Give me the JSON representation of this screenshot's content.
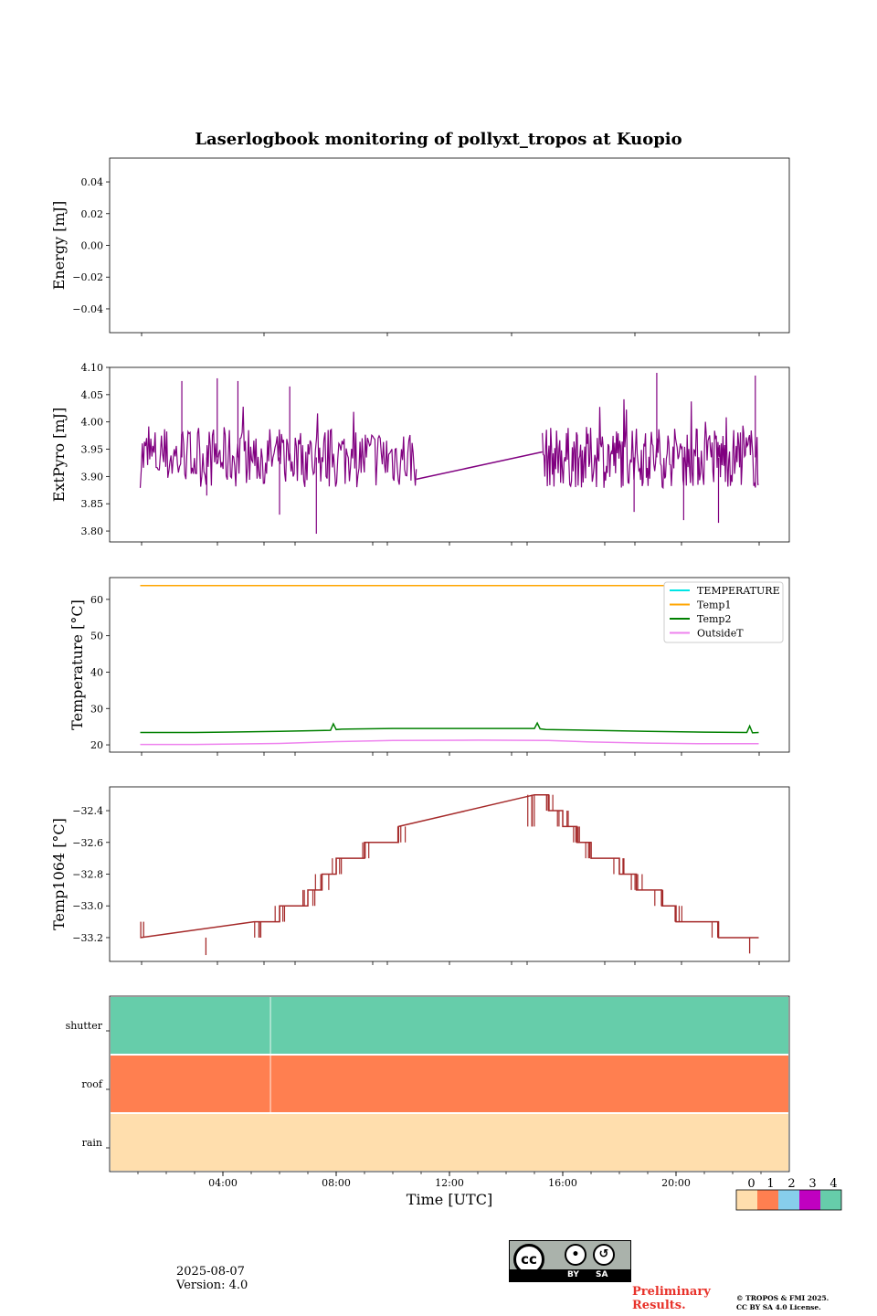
{
  "title": "Laserlogbook monitoring of pollyxt_tropos at Kuopio",
  "footer": {
    "date": "2025-08-07",
    "version": "Version: 4.0",
    "preliminary_line1": "Preliminary",
    "preliminary_line2": "Results.",
    "copyright_line1": "© TROPOS & FMI 2025.",
    "copyright_line2": "CC BY SA 4.0 License.",
    "cc_by": "BY",
    "cc_sa": "SA"
  },
  "colors": {
    "extpyro": "#800080",
    "temperature": "#00e5e5",
    "temp1": "#ffa500",
    "temp2": "#008000",
    "outsideT": "#ee82ee",
    "temp1064": "#a52a2a",
    "status": [
      "#ffdead",
      "#ff7f50",
      "#87ceeb",
      "#c000c0",
      "#66cdaa"
    ]
  },
  "chart_data": [
    {
      "type": "line",
      "name": "energy",
      "ylabel": "Energy [mJ]",
      "ylim": [
        -0.055,
        0.055
      ],
      "yticks": [
        0.04,
        0.02,
        0.0,
        -0.02,
        -0.04
      ],
      "ytick_labels": [
        "0.04",
        "0.02",
        "0.00",
        "−0.02",
        "−0.04"
      ],
      "series": []
    },
    {
      "type": "line",
      "name": "extpyro",
      "ylabel": "ExtPyro [mJ]",
      "ylim": [
        3.78,
        4.1
      ],
      "yticks": [
        4.1,
        4.05,
        4.0,
        3.95,
        3.9,
        3.85,
        3.8
      ],
      "ytick_labels": [
        "4.10",
        "4.05",
        "4.00",
        "3.95",
        "3.90",
        "3.85",
        "3.80"
      ],
      "series": [
        {
          "segments": [
            [
              1.08,
              10.83
            ],
            [
              15.28,
              22.92
            ]
          ],
          "bridge": [
            [
              10.83,
              3.895
            ],
            [
              15.28,
              3.945
            ]
          ],
          "mean": 3.935,
          "spread": 0.035,
          "spikes_high": [
            [
              2.55,
              4.075
            ],
            [
              3.8,
              4.08
            ],
            [
              4.53,
              4.075
            ],
            [
              6.36,
              4.065
            ],
            [
              19.32,
              4.09
            ],
            [
              22.8,
              4.085
            ]
          ],
          "spikes_low": [
            [
              3.43,
              3.865
            ],
            [
              6.0,
              3.83
            ],
            [
              7.3,
              3.795
            ],
            [
              18.52,
              3.835
            ],
            [
              20.27,
              3.82
            ],
            [
              21.5,
              3.815
            ]
          ]
        }
      ]
    },
    {
      "type": "line",
      "name": "temperature",
      "ylabel": "Temperature [°C]",
      "ylim": [
        18,
        66
      ],
      "yticks": [
        60,
        50,
        40,
        30,
        20
      ],
      "ytick_labels": [
        "60",
        "50",
        "40",
        "30",
        "20"
      ],
      "legend": "top-right",
      "series": [
        {
          "name": "TEMPERATURE",
          "x": [],
          "y": []
        },
        {
          "name": "Temp1",
          "x": [
            1.08,
            22.92
          ],
          "y": [
            63.8,
            63.8
          ]
        },
        {
          "name": "Temp2",
          "x": [
            1.08,
            3.0,
            6.0,
            7.8,
            7.9,
            8.0,
            8.2,
            10.0,
            12.0,
            15.0,
            15.1,
            15.2,
            15.4,
            17.0,
            19.0,
            21.0,
            22.5,
            22.6,
            22.7,
            22.92
          ],
          "y": [
            23.4,
            23.4,
            23.7,
            24.0,
            25.8,
            24.2,
            24.3,
            24.5,
            24.5,
            24.5,
            26.0,
            24.4,
            24.2,
            24.0,
            23.7,
            23.5,
            23.4,
            25.2,
            23.3,
            23.4
          ]
        },
        {
          "name": "OutsideT",
          "x": [
            1.08,
            3.0,
            6.0,
            8.0,
            10.0,
            13.0,
            15.5,
            17.0,
            19.0,
            21.0,
            22.92
          ],
          "y": [
            20.1,
            20.1,
            20.4,
            20.9,
            21.2,
            21.3,
            21.2,
            20.8,
            20.5,
            20.3,
            20.3
          ]
        }
      ]
    },
    {
      "type": "line",
      "name": "temp1064",
      "ylabel": "Temp1064 [°C]",
      "ylim": [
        -33.35,
        -32.25
      ],
      "yticks": [
        -32.4,
        -32.6,
        -32.8,
        -33.0,
        -33.2
      ],
      "ytick_labels": [
        "−32.4",
        "−32.6",
        "−32.8",
        "−33.0",
        "−33.2"
      ],
      "series": [
        {
          "steps": [
            [
              1.08,
              -33.2
            ],
            [
              5.1,
              -33.1
            ],
            [
              6.0,
              -33.0
            ],
            [
              7.0,
              -32.9
            ],
            [
              7.5,
              -32.8
            ],
            [
              8.0,
              -32.7
            ],
            [
              9.0,
              -32.6
            ],
            [
              10.2,
              -32.5
            ],
            [
              15.0,
              -32.3
            ],
            [
              15.5,
              -32.4
            ],
            [
              16.0,
              -32.5
            ],
            [
              16.5,
              -32.6
            ],
            [
              17.0,
              -32.7
            ],
            [
              18.0,
              -32.8
            ],
            [
              18.6,
              -32.9
            ],
            [
              19.5,
              -33.0
            ],
            [
              20.0,
              -33.1
            ],
            [
              21.5,
              -33.2
            ],
            [
              22.92,
              -33.2
            ]
          ],
          "dips": [
            [
              3.4,
              -33.31
            ],
            [
              22.6,
              -33.3
            ]
          ]
        }
      ]
    },
    {
      "type": "heatmap",
      "name": "status",
      "rows": [
        "shutter",
        "roof",
        "rain"
      ],
      "row_values": [
        4,
        1,
        0
      ],
      "break_at": 5.68,
      "xlabel": "Time [UTC]",
      "xlim": [
        0,
        24
      ],
      "xtick_labels": [
        "04:00",
        "08:00",
        "12:00",
        "16:00",
        "20:00"
      ],
      "xticks": [
        4,
        8,
        12,
        16,
        20
      ],
      "colorbar": {
        "values": [
          0,
          1,
          2,
          3,
          4
        ],
        "labels": [
          "0",
          "1",
          "2",
          "3",
          "4"
        ]
      }
    }
  ]
}
